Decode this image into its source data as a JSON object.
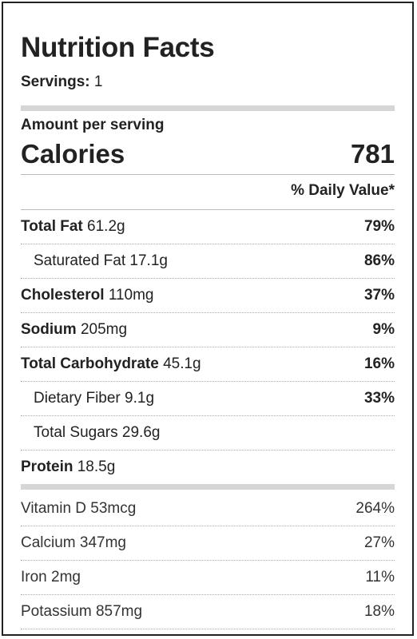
{
  "title": "Nutrition Facts",
  "servings_label": "Servings:",
  "servings_value": "1",
  "amount_per_serving": "Amount per serving",
  "calories_label": "Calories",
  "calories_value": "781",
  "daily_value_header": "% Daily Value*",
  "nutrients": [
    {
      "name": "Total Fat",
      "amount": "61.2g",
      "pct": "79%"
    },
    {
      "name": "Saturated Fat",
      "amount": "17.1g",
      "pct": "86%"
    },
    {
      "name": "Cholesterol",
      "amount": "110mg",
      "pct": "37%"
    },
    {
      "name": "Sodium",
      "amount": "205mg",
      "pct": "9%"
    },
    {
      "name": "Total Carbohydrate",
      "amount": "45.1g",
      "pct": "16%"
    },
    {
      "name": "Dietary Fiber",
      "amount": "9.1g",
      "pct": "33%"
    },
    {
      "name": "Total Sugars",
      "amount": "29.6g",
      "pct": ""
    },
    {
      "name": "Protein",
      "amount": "18.5g",
      "pct": ""
    }
  ],
  "vitamins": [
    {
      "name": "Vitamin D",
      "amount": "53mcg",
      "pct": "264%"
    },
    {
      "name": "Calcium",
      "amount": "347mg",
      "pct": "27%"
    },
    {
      "name": "Iron",
      "amount": "2mg",
      "pct": "11%"
    },
    {
      "name": "Potassium",
      "amount": "857mg",
      "pct": "18%"
    }
  ]
}
